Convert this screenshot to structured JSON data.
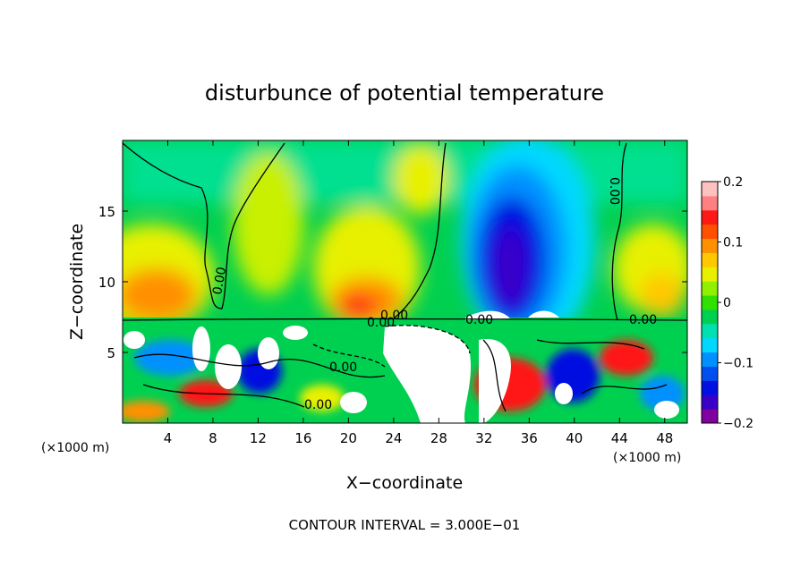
{
  "chart_data": {
    "type": "heatmap",
    "title": "disturbunce of potential temperature",
    "xlabel": "X−coordinate",
    "ylabel": "Z−coordinate",
    "x_unit_label": "(×1000 m)",
    "z_unit_label": "(×1000 m)",
    "xlim": [
      0,
      50
    ],
    "ylim": [
      0,
      20
    ],
    "x_ticks": [
      4,
      8,
      12,
      16,
      20,
      24,
      28,
      32,
      36,
      40,
      44,
      48
    ],
    "y_ticks": [
      5,
      10,
      15
    ],
    "colorbar": {
      "min": -0.2,
      "max": 0.2,
      "ticks": [
        {
          "value": 0.2,
          "label": "0.2"
        },
        {
          "value": 0.1,
          "label": "0.1"
        },
        {
          "value": 0,
          "label": "0"
        },
        {
          "value": -0.1,
          "label": "−0.1"
        },
        {
          "value": -0.2,
          "label": "−0.2"
        }
      ],
      "colors": [
        "#8000a0",
        "#3a00c8",
        "#0010e0",
        "#0050f0",
        "#0090ff",
        "#00d8ff",
        "#00e0b0",
        "#00d050",
        "#30e000",
        "#90f000",
        "#e8f000",
        "#ffc800",
        "#ff9000",
        "#ff5000",
        "#ff1818",
        "#ff8080",
        "#ffc0c0"
      ]
    },
    "contour_labels": [
      "0.00",
      "0.00",
      "0.00",
      "0.00",
      "0.00",
      "0.00",
      "0.00",
      "0.00"
    ],
    "contour_interval_text": "CONTOUR INTERVAL = 3.000E−01",
    "legend": "right"
  }
}
